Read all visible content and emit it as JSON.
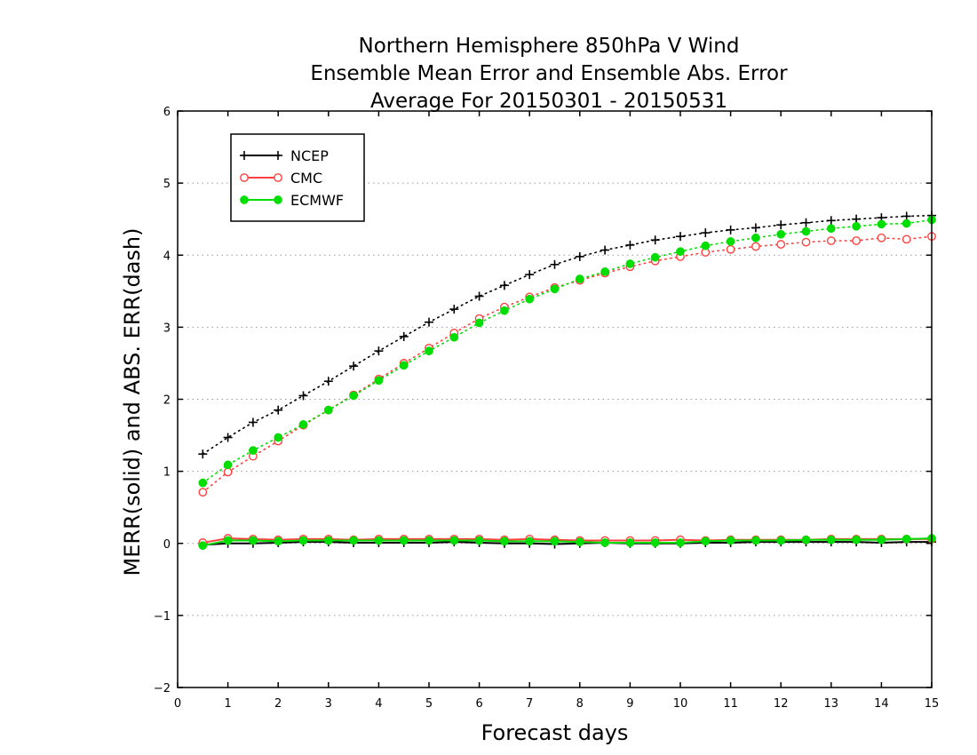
{
  "chart_data": {
    "type": "line",
    "title_lines": [
      "Northern Hemisphere 850hPa V Wind",
      "Ensemble Mean Error and Ensemble Abs. Error",
      "Average For 20150301 - 20150531"
    ],
    "xlabel": "Forecast days",
    "ylabel": "MERR(solid) and ABS. ERR(dash)",
    "xlim": [
      0,
      15
    ],
    "ylim": [
      -2,
      6
    ],
    "x_ticks": [
      0,
      1,
      2,
      3,
      4,
      5,
      6,
      7,
      8,
      9,
      10,
      11,
      12,
      13,
      14,
      15
    ],
    "y_ticks": [
      -2,
      -1,
      0,
      1,
      2,
      3,
      4,
      5,
      6
    ],
    "y_tick_labels": [
      "−2",
      "−1",
      "0",
      "1",
      "2",
      "3",
      "4",
      "5",
      "6"
    ],
    "grid": "horizontal dotted",
    "legend_position": "top-left",
    "x": [
      0.5,
      1,
      1.5,
      2,
      2.5,
      3,
      3.5,
      4,
      4.5,
      5,
      5.5,
      6,
      6.5,
      7,
      7.5,
      8,
      8.5,
      9,
      9.5,
      10,
      10.5,
      11,
      11.5,
      12,
      12.5,
      13,
      13.5,
      14,
      14.5,
      15
    ],
    "series": [
      {
        "name": "NCEP",
        "color": "#000000",
        "marker": "plus",
        "merr": [
          -0.02,
          0.0,
          0.0,
          0.01,
          0.02,
          0.02,
          0.01,
          0.01,
          0.01,
          0.01,
          0.02,
          0.01,
          0.0,
          0.0,
          -0.01,
          0.0,
          0.01,
          0.0,
          0.0,
          0.0,
          0.01,
          0.01,
          0.02,
          0.02,
          0.02,
          0.02,
          0.02,
          0.01,
          0.02,
          0.02
        ],
        "abs_err": [
          1.24,
          1.47,
          1.68,
          1.85,
          2.05,
          2.25,
          2.46,
          2.67,
          2.87,
          3.07,
          3.25,
          3.43,
          3.58,
          3.73,
          3.87,
          3.98,
          4.07,
          4.14,
          4.21,
          4.26,
          4.31,
          4.35,
          4.38,
          4.42,
          4.45,
          4.48,
          4.5,
          4.52,
          4.54,
          4.55
        ]
      },
      {
        "name": "CMC",
        "color": "#ff4040",
        "marker": "open-circle",
        "merr": [
          0.01,
          0.07,
          0.06,
          0.05,
          0.06,
          0.06,
          0.05,
          0.06,
          0.06,
          0.06,
          0.06,
          0.06,
          0.05,
          0.06,
          0.05,
          0.04,
          0.04,
          0.04,
          0.04,
          0.05,
          0.04,
          0.05,
          0.05,
          0.05,
          0.05,
          0.06,
          0.06,
          0.06,
          0.06,
          0.06
        ],
        "abs_err": [
          0.71,
          0.99,
          1.21,
          1.42,
          1.64,
          1.85,
          2.06,
          2.28,
          2.5,
          2.71,
          2.92,
          3.12,
          3.28,
          3.42,
          3.55,
          3.65,
          3.75,
          3.84,
          3.92,
          3.98,
          4.04,
          4.08,
          4.12,
          4.15,
          4.18,
          4.2,
          4.2,
          4.24,
          4.22,
          4.26
        ]
      },
      {
        "name": "ECMWF",
        "color": "#00dd00",
        "marker": "filled-circle",
        "merr": [
          -0.03,
          0.04,
          0.04,
          0.03,
          0.04,
          0.04,
          0.04,
          0.04,
          0.04,
          0.04,
          0.04,
          0.04,
          0.03,
          0.03,
          0.03,
          0.02,
          0.01,
          0.01,
          0.01,
          0.01,
          0.03,
          0.04,
          0.04,
          0.04,
          0.05,
          0.05,
          0.05,
          0.05,
          0.06,
          0.07
        ],
        "abs_err": [
          0.84,
          1.09,
          1.29,
          1.47,
          1.65,
          1.85,
          2.05,
          2.26,
          2.47,
          2.67,
          2.86,
          3.06,
          3.23,
          3.39,
          3.53,
          3.67,
          3.77,
          3.88,
          3.97,
          4.05,
          4.13,
          4.19,
          4.24,
          4.29,
          4.33,
          4.37,
          4.4,
          4.43,
          4.44,
          4.49
        ]
      }
    ]
  }
}
